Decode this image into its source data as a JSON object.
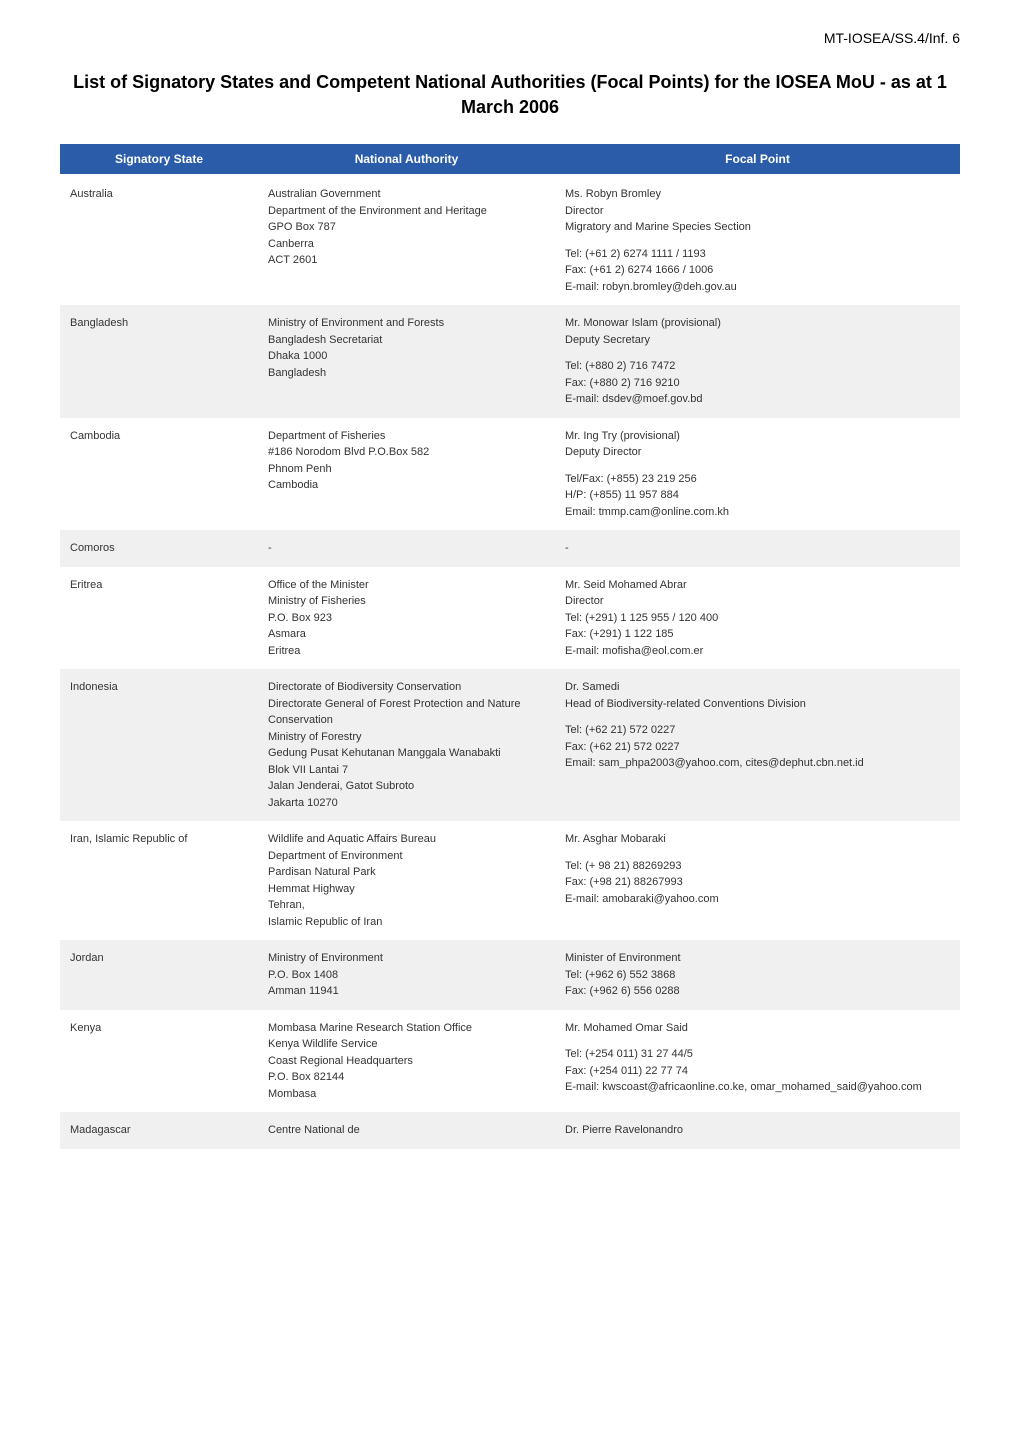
{
  "docRef": "MT-IOSEA/SS.4/Inf. 6",
  "title": "List of Signatory States and Competent National Authorities (Focal Points) for the IOSEA MoU - as at 1 March 2006",
  "columns": [
    "Signatory State",
    "National Authority",
    "Focal Point"
  ],
  "headerBg": "#2a5caa",
  "headerFg": "#ffffff",
  "rowBgOdd": "#ffffff",
  "rowBgEven": "#f0f0f0",
  "rows": [
    {
      "state": "Australia",
      "authority": [
        "Australian Government",
        "Department of the Environment and Heritage",
        "GPO Box 787",
        "Canberra",
        "ACT 2601"
      ],
      "focal": [
        [
          "Ms. Robyn Bromley",
          "Director",
          "Migratory and Marine Species Section"
        ],
        [
          "Tel: (+61 2) 6274 1111 / 1193",
          "Fax: (+61 2) 6274 1666 / 1006",
          "E-mail: robyn.bromley@deh.gov.au"
        ]
      ]
    },
    {
      "state": "Bangladesh",
      "authority": [
        "Ministry of Environment and Forests",
        "Bangladesh Secretariat",
        "Dhaka 1000",
        "Bangladesh"
      ],
      "focal": [
        [
          "Mr. Monowar Islam (provisional)",
          "Deputy Secretary"
        ],
        [
          "Tel: (+880 2) 716 7472",
          "Fax: (+880 2) 716 9210",
          "E-mail: dsdev@moef.gov.bd"
        ]
      ]
    },
    {
      "state": "Cambodia",
      "authority": [
        "Department of Fisheries",
        "#186 Norodom Blvd P.O.Box 582",
        "Phnom Penh",
        "Cambodia"
      ],
      "focal": [
        [
          "Mr. Ing Try (provisional)",
          "Deputy Director"
        ],
        [
          "Tel/Fax: (+855) 23 219 256",
          "H/P: (+855) 11 957 884",
          "Email: tmmp.cam@online.com.kh"
        ]
      ]
    },
    {
      "state": "Comoros",
      "authority": [
        "-"
      ],
      "focal": [
        [
          "-"
        ]
      ]
    },
    {
      "state": "Eritrea",
      "authority": [
        "Office of the Minister",
        "Ministry of Fisheries",
        "P.O. Box 923",
        "Asmara",
        "Eritrea"
      ],
      "focal": [
        [
          "Mr. Seid Mohamed Abrar",
          "Director",
          "Tel: (+291) 1 125 955 / 120 400",
          "Fax: (+291) 1 122 185",
          "E-mail: mofisha@eol.com.er"
        ]
      ]
    },
    {
      "state": "Indonesia",
      "authority": [
        "Directorate of Biodiversity Conservation",
        "Directorate General of Forest Protection and Nature Conservation",
        "Ministry of Forestry",
        "Gedung Pusat Kehutanan Manggala Wanabakti",
        "Blok VII Lantai 7",
        "Jalan Jenderai, Gatot Subroto",
        "Jakarta 10270"
      ],
      "focal": [
        [
          "Dr. Samedi",
          "Head of Biodiversity-related Conventions Division"
        ],
        [
          "Tel: (+62 21) 572 0227",
          "Fax: (+62 21) 572 0227",
          "Email: sam_phpa2003@yahoo.com, cites@dephut.cbn.net.id"
        ]
      ]
    },
    {
      "state": "Iran, Islamic Republic of",
      "authority": [
        "Wildlife and Aquatic Affairs Bureau",
        "Department of Environment",
        "Pardisan Natural Park",
        "Hemmat Highway",
        "Tehran,",
        "Islamic Republic of Iran"
      ],
      "focal": [
        [
          "Mr. Asghar Mobaraki"
        ],
        [
          "Tel: (+ 98 21) 88269293",
          "Fax: (+98 21) 88267993",
          "E-mail: amobaraki@yahoo.com"
        ]
      ]
    },
    {
      "state": "Jordan",
      "authority": [
        "Ministry of Environment",
        "P.O. Box 1408",
        "Amman 11941"
      ],
      "focal": [
        [
          "Minister of Environment",
          "Tel: (+962 6) 552 3868",
          "Fax: (+962 6) 556 0288"
        ]
      ]
    },
    {
      "state": "Kenya",
      "authority": [
        "Mombasa Marine Research Station Office",
        "Kenya Wildlife Service",
        "Coast Regional Headquarters",
        "P.O. Box 82144",
        "Mombasa"
      ],
      "focal": [
        [
          "Mr. Mohamed Omar Said"
        ],
        [
          "Tel: (+254 011) 31 27 44/5",
          "Fax: (+254 011) 22 77 74",
          "E-mail: kwscoast@africaonline.co.ke, omar_mohamed_said@yahoo.com"
        ]
      ]
    },
    {
      "state": "Madagascar",
      "authority": [
        "Centre National de"
      ],
      "focal": [
        [
          "Dr. Pierre Ravelonandro"
        ]
      ]
    }
  ]
}
